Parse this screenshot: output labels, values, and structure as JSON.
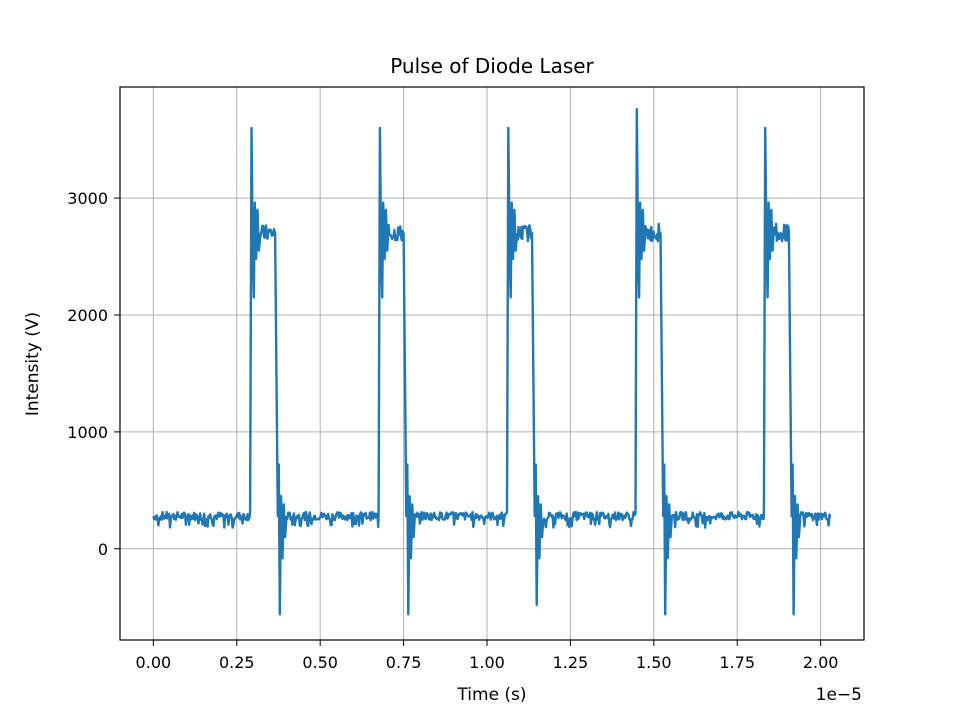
{
  "chart_data": {
    "type": "line",
    "title": "Pulse of Diode Laser",
    "xlabel": "Time (s)",
    "ylabel": "Intensity (V)",
    "x_offset_label": "1e−5",
    "x_scale": 1e-05,
    "xlim": [
      -0.1,
      2.13
    ],
    "ylim": [
      -780,
      3950
    ],
    "x_ticks": [
      0.0,
      0.25,
      0.5,
      0.75,
      1.0,
      1.25,
      1.5,
      1.75,
      2.0
    ],
    "x_tick_labels": [
      "0.00",
      "0.25",
      "0.50",
      "0.75",
      "1.00",
      "1.25",
      "1.50",
      "1.75",
      "2.00"
    ],
    "y_ticks": [
      0,
      1000,
      2000,
      3000
    ],
    "y_tick_labels": [
      "0",
      "1000",
      "2000",
      "3000"
    ],
    "grid": true,
    "color": "#1f77b4",
    "series": [
      {
        "baseline": 280,
        "plateau": 2700,
        "start": 0.0,
        "end": 2.03,
        "pulses": [
          {
            "rise": 0.29,
            "fall": 0.365,
            "peak": 3600,
            "undershoot": -560
          },
          {
            "rise": 0.675,
            "fall": 0.75,
            "peak": 3600,
            "undershoot": -560
          },
          {
            "rise": 1.06,
            "fall": 1.135,
            "peak": 3600,
            "undershoot": -480
          },
          {
            "rise": 1.445,
            "fall": 1.52,
            "peak": 3760,
            "undershoot": -560
          },
          {
            "rise": 1.83,
            "fall": 1.905,
            "peak": 3600,
            "undershoot": -560
          }
        ]
      }
    ]
  }
}
